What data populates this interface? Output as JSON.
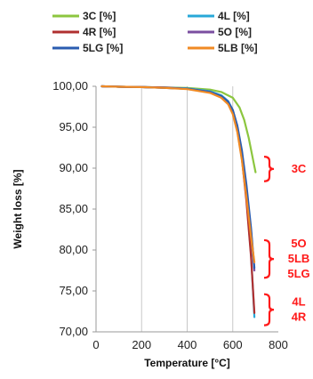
{
  "chart_data": {
    "type": "line",
    "title": "",
    "xlabel": "Temperature [°C]",
    "ylabel": "Weight loss [%]",
    "xlim": [
      0,
      800
    ],
    "ylim": [
      70,
      100
    ],
    "x_ticks": [
      "0",
      "200",
      "400",
      "600",
      "800"
    ],
    "y_ticks": [
      "70,00",
      "75,00",
      "80,00",
      "85,00",
      "90,00",
      "95,00",
      "100,00"
    ],
    "grid": "vertical",
    "legend_position": "top",
    "series": [
      {
        "name": "3C [%]",
        "color": "#8cc63f",
        "x": [
          25,
          100,
          200,
          300,
          400,
          500,
          550,
          600,
          630,
          650,
          670,
          690,
          700
        ],
        "y": [
          100,
          99.95,
          99.9,
          99.85,
          99.8,
          99.6,
          99.3,
          98.6,
          97.4,
          95.9,
          93.7,
          90.9,
          89.5
        ]
      },
      {
        "name": "4L [%]",
        "color": "#28a8d8",
        "x": [
          25,
          100,
          200,
          300,
          400,
          500,
          550,
          580,
          600,
          620,
          640,
          660,
          680,
          695
        ],
        "y": [
          100,
          99.95,
          99.9,
          99.85,
          99.75,
          99.4,
          98.9,
          98.2,
          97.1,
          95.0,
          91.6,
          86.4,
          79.5,
          71.8
        ]
      },
      {
        "name": "4R [%]",
        "color": "#b03030",
        "x": [
          25,
          100,
          200,
          300,
          400,
          500,
          550,
          580,
          600,
          620,
          640,
          660,
          680,
          695
        ],
        "y": [
          100,
          99.95,
          99.9,
          99.85,
          99.7,
          99.3,
          98.7,
          97.9,
          96.8,
          94.6,
          91.2,
          86.0,
          79.2,
          72.3
        ]
      },
      {
        "name": "5O [%]",
        "color": "#7b4fa0",
        "x": [
          25,
          100,
          200,
          300,
          400,
          500,
          550,
          580,
          600,
          620,
          640,
          660,
          680,
          695
        ],
        "y": [
          100,
          99.95,
          99.9,
          99.8,
          99.7,
          99.3,
          98.8,
          98.1,
          97.0,
          95.0,
          91.9,
          87.6,
          82.3,
          77.5
        ]
      },
      {
        "name": "5LG [%]",
        "color": "#2a5cb0",
        "x": [
          25,
          100,
          200,
          300,
          400,
          500,
          550,
          580,
          600,
          620,
          640,
          660,
          680,
          695
        ],
        "y": [
          100,
          99.95,
          99.9,
          99.8,
          99.7,
          99.3,
          98.8,
          98.1,
          97.1,
          95.2,
          92.2,
          88.0,
          82.7,
          77.8
        ]
      },
      {
        "name": "5LB [%]",
        "color": "#f08a24",
        "x": [
          25,
          100,
          200,
          300,
          400,
          500,
          550,
          580,
          600,
          620,
          640,
          660,
          680,
          695
        ],
        "y": [
          100,
          99.95,
          99.9,
          99.8,
          99.65,
          99.2,
          98.6,
          97.8,
          96.6,
          94.4,
          91.0,
          86.5,
          81.6,
          78.5
        ]
      }
    ],
    "annotations": [
      {
        "lines": [
          "3C"
        ],
        "bracket_y": [
          88.4,
          91.4
        ]
      },
      {
        "lines": [
          "5O",
          "5LB",
          "5LG"
        ],
        "bracket_y": [
          76.6,
          81.2
        ]
      },
      {
        "lines": [
          "4L",
          "4R"
        ],
        "bracket_y": [
          70.8,
          74.6
        ]
      }
    ]
  }
}
